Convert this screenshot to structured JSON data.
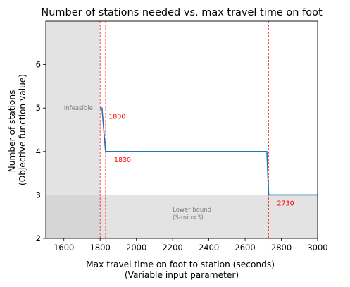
{
  "chart_data": {
    "type": "line",
    "title": "Number of stations needed vs. max travel time on foot",
    "xlabel": [
      "Max travel time on foot to station (seconds)",
      "(Variable input parameter)"
    ],
    "ylabel": [
      "Number of stations",
      "(Objective function value)"
    ],
    "xlim": [
      1500,
      3000
    ],
    "ylim": [
      2,
      7
    ],
    "xticks": [
      1600,
      1800,
      2000,
      2200,
      2400,
      2600,
      2800,
      3000
    ],
    "yticks": [
      2,
      3,
      4,
      5,
      6
    ],
    "grid": false,
    "series": [
      {
        "color": "#1f77b4",
        "x": [
          1800,
          1810,
          1830,
          2720,
          2730,
          3000
        ],
        "y": [
          5,
          5,
          4,
          4,
          3,
          3
        ]
      }
    ],
    "shaded_regions": [
      {
        "label": "Infeasible",
        "x_range": [
          1500,
          1800
        ],
        "y_range": [
          2,
          7
        ],
        "color": "#cccccc"
      },
      {
        "label": [
          "Lower bound",
          "(S-min=3)"
        ],
        "x_range": [
          1500,
          3000
        ],
        "y_range": [
          2,
          3
        ],
        "color": "#cccccc"
      }
    ],
    "vlines": [
      {
        "x": 1800,
        "label": "1800",
        "color": "#ff0000"
      },
      {
        "x": 1830,
        "label": "1830",
        "color": "#ff0000"
      },
      {
        "x": 2730,
        "label": "2730",
        "color": "#ff0000"
      }
    ]
  }
}
